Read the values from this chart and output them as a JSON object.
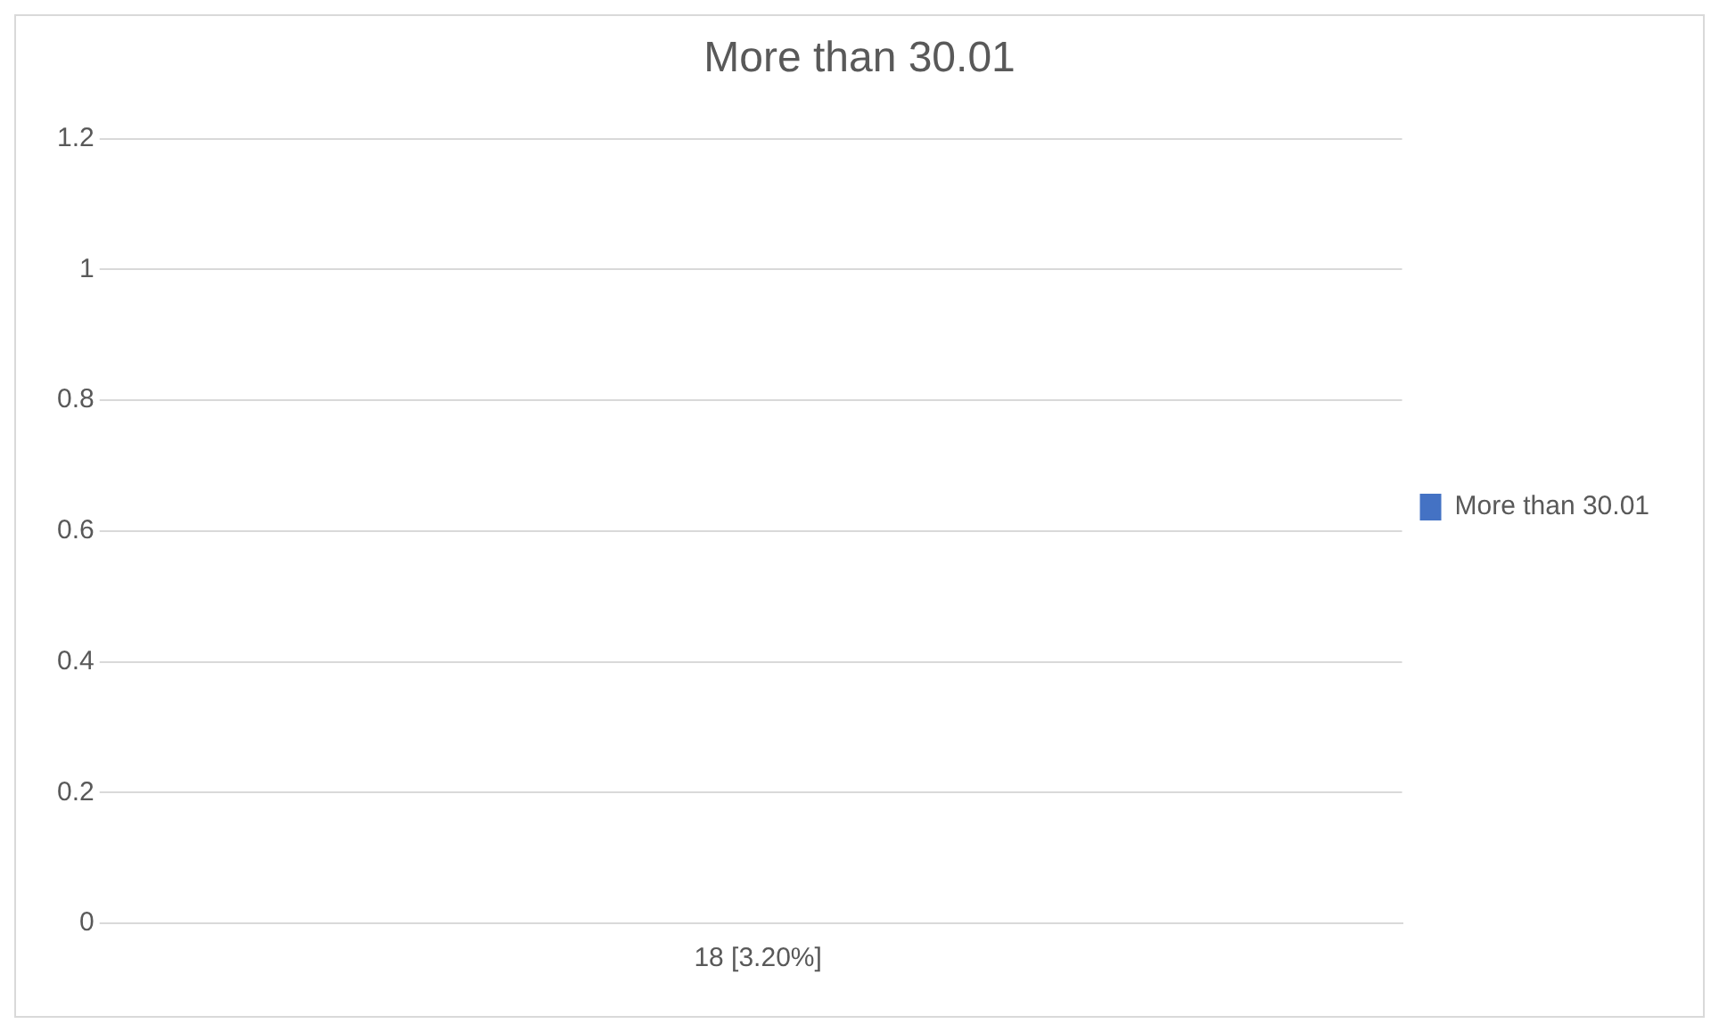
{
  "chart_data": {
    "type": "bar",
    "title": "More than 30.01",
    "categories": [
      "18 [3.20%]"
    ],
    "series": [
      {
        "name": "More than 30.01",
        "color": "#4472c4",
        "values": [
          0
        ]
      }
    ],
    "ylim": [
      0,
      1.2
    ],
    "yticks": [
      0,
      0.2,
      0.4,
      0.6,
      0.8,
      1,
      1.2
    ],
    "grid": "y",
    "legend": "right"
  }
}
